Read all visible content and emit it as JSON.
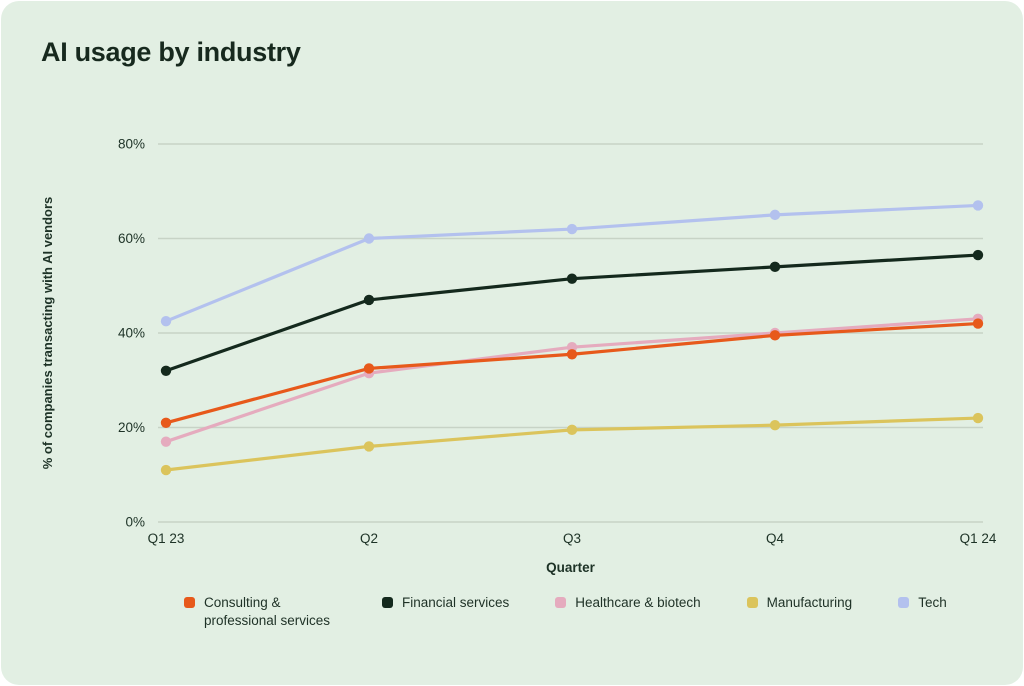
{
  "colors": {
    "page_background": "#ffffff",
    "card_background": "#e2efe3",
    "title_text": "#17291e",
    "axis_text": "#1d3226",
    "gridline": "#c7d3c6"
  },
  "chart_data": {
    "type": "line",
    "title": "AI usage by industry",
    "xlabel": "Quarter",
    "ylabel": "% of companies transacting with AI vendors",
    "categories": [
      "Q1 23",
      "Q2",
      "Q3",
      "Q4",
      "Q1 24"
    ],
    "ylim": [
      0,
      80
    ],
    "yticks": [
      0,
      20,
      40,
      60,
      80
    ],
    "ytick_labels": [
      "0%",
      "20%",
      "40%",
      "60%",
      "80%"
    ],
    "grid": true,
    "legend_position": "bottom",
    "marker": "circle",
    "series": [
      {
        "name": "Consulting & professional services",
        "color": "#e7591b",
        "values": [
          21,
          32.5,
          35.5,
          39.5,
          42
        ]
      },
      {
        "name": "Financial services",
        "color": "#14291d",
        "values": [
          32,
          47,
          51.5,
          54,
          56.5
        ]
      },
      {
        "name": "Healthcare & biotech",
        "color": "#e5abbe",
        "values": [
          17,
          31.5,
          37,
          40,
          43
        ]
      },
      {
        "name": "Manufacturing",
        "color": "#dbc45c",
        "values": [
          11,
          16,
          19.5,
          20.5,
          22
        ]
      },
      {
        "name": "Tech",
        "color": "#b3c1ee",
        "values": [
          42.5,
          60,
          62,
          65,
          67
        ]
      }
    ]
  }
}
